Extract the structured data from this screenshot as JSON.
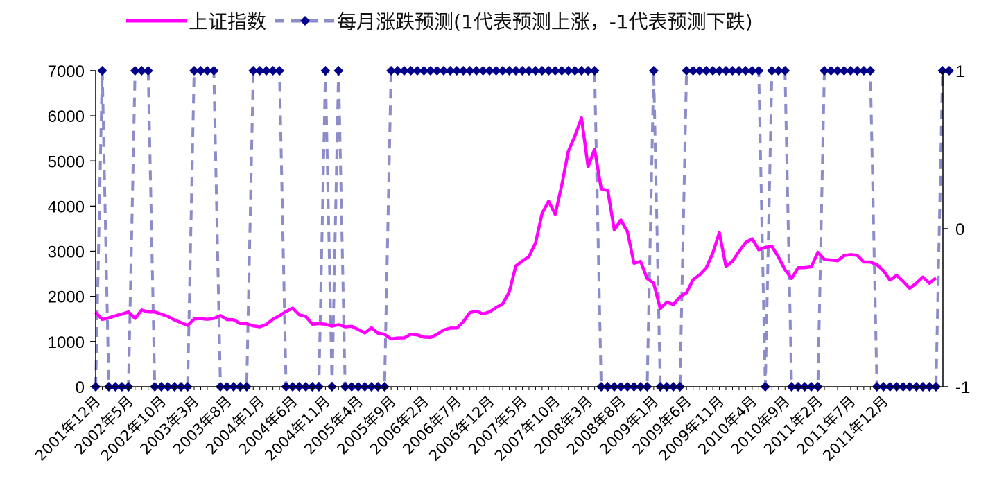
{
  "chart_data": {
    "type": "line",
    "legend": {
      "series1": "上证指数",
      "series2": "每月涨跌预测(1代表预测上涨，-1代表预测下跌)"
    },
    "colors": {
      "index_line": "#ff00ff",
      "forecast_line": "#8c8cc8",
      "forecast_marker": "#00008b"
    },
    "y_left": {
      "ylim": [
        0,
        7000
      ],
      "ticks": [
        "0",
        "1000",
        "2000",
        "3000",
        "4000",
        "5000",
        "6000",
        "7000"
      ]
    },
    "y_right": {
      "ylim": [
        -1,
        1
      ],
      "ticks": [
        "-1",
        "0",
        "1"
      ]
    },
    "x_start": "2001-12",
    "x_tick_labels": [
      "2001年12月",
      "2002年5月",
      "2002年10月",
      "2003年3月",
      "2003年8月",
      "2004年1月",
      "2004年6月",
      "2004年11月",
      "2005年4月",
      "2005年9月",
      "2006年2月",
      "2006年7月",
      "2006年12月",
      "2007年5月",
      "2007年10月",
      "2008年3月",
      "2008年8月",
      "2009年1月",
      "2009年6月",
      "2009年11月",
      "2010年4月",
      "2010年9月",
      "2011年2月",
      "2011年7月",
      "2011年12月"
    ],
    "series": [
      {
        "name": "上证指数",
        "axis": "left",
        "values": [
          1646,
          1491,
          1524,
          1570,
          1610,
          1655,
          1512,
          1700,
          1653,
          1656,
          1605,
          1556,
          1478,
          1420,
          1357,
          1500,
          1511,
          1494,
          1512,
          1576,
          1487,
          1486,
          1400,
          1397,
          1348,
          1328,
          1380,
          1497,
          1572,
          1665,
          1741,
          1595,
          1555,
          1386,
          1399,
          1385,
          1342,
          1375,
          1328,
          1340,
          1266,
          1191,
          1306,
          1186,
          1161,
          1060,
          1080,
          1083,
          1163,
          1146,
          1099,
          1093,
          1161,
          1258,
          1299,
          1299,
          1440,
          1641,
          1672,
          1612,
          1658,
          1753,
          1837,
          2099,
          2675,
          2786,
          2881,
          3183,
          3841,
          4110,
          3820,
          4471,
          5218,
          5552,
          5955,
          4871,
          5261,
          4383,
          4348,
          3473,
          3693,
          3433,
          2736,
          2775,
          2397,
          2293,
          1729,
          1871,
          1820,
          1991,
          2082,
          2373,
          2477,
          2632,
          2959,
          3412,
          2667,
          2779,
          2996,
          3195,
          3277,
          3033,
          3087,
          3110,
          2870,
          2593,
          2398,
          2638,
          2638,
          2656,
          2978,
          2820,
          2808,
          2791,
          2905,
          2928,
          2911,
          2763,
          2762,
          2705,
          2568,
          2359,
          2469,
          2333,
          2181,
          2293,
          2428,
          2292,
          2410
        ]
      },
      {
        "name": "每月涨跌预测(1代表预测上涨，-1代表预测下跌)",
        "axis": "right",
        "values": [
          -1,
          1,
          -1,
          -1,
          -1,
          -1,
          1,
          1,
          1,
          -1,
          -1,
          -1,
          -1,
          -1,
          -1,
          1,
          1,
          1,
          1,
          -1,
          -1,
          -1,
          -1,
          -1,
          1,
          1,
          1,
          1,
          1,
          -1,
          -1,
          -1,
          -1,
          -1,
          -1,
          1,
          -1,
          1,
          -1,
          -1,
          -1,
          -1,
          -1,
          -1,
          -1,
          1,
          1,
          1,
          1,
          1,
          1,
          1,
          1,
          1,
          1,
          1,
          1,
          1,
          1,
          1,
          1,
          1,
          1,
          1,
          1,
          1,
          1,
          1,
          1,
          1,
          1,
          1,
          1,
          1,
          1,
          1,
          1,
          -1,
          -1,
          -1,
          -1,
          -1,
          -1,
          -1,
          -1,
          1,
          -1,
          -1,
          -1,
          -1,
          1,
          1,
          1,
          1,
          1,
          1,
          1,
          1,
          1,
          1,
          1,
          1,
          -1,
          1,
          1,
          1,
          -1,
          -1,
          -1,
          -1,
          -1,
          1,
          1,
          1,
          1,
          1,
          1,
          1,
          1,
          -1,
          -1,
          -1,
          -1,
          -1,
          -1,
          -1,
          -1,
          -1,
          -1,
          1,
          1
        ]
      }
    ]
  }
}
